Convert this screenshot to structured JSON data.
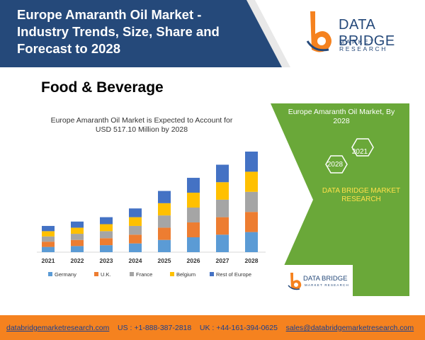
{
  "header": {
    "title": "Europe Amaranth Oil Market - Industry Trends, Size, Share and Forecast to 2028"
  },
  "logo": {
    "name": "DATA BRIDGE",
    "tagline": "MARKET RESEARCH"
  },
  "segment": "Food & Beverage",
  "chart_data": {
    "type": "bar",
    "stacked": true,
    "title": "Europe Amaranth Oil Market is Expected to Account for USD 517.10 Million by 2028",
    "categories": [
      "2021",
      "2022",
      "2023",
      "2024",
      "2025",
      "2026",
      "2027",
      "2028"
    ],
    "series": [
      {
        "name": "Germany",
        "color": "#5b9bd5",
        "values": [
          6,
          7,
          8,
          10,
          14,
          17,
          20,
          23
        ]
      },
      {
        "name": "U.K.",
        "color": "#ed7d31",
        "values": [
          6,
          7,
          8,
          10,
          14,
          17,
          20,
          23
        ]
      },
      {
        "name": "France",
        "color": "#a5a5a5",
        "values": [
          6,
          7,
          8,
          10,
          14,
          17,
          20,
          23
        ]
      },
      {
        "name": "Belgium",
        "color": "#ffc000",
        "values": [
          6,
          7,
          8,
          10,
          14,
          17,
          20,
          23
        ]
      },
      {
        "name": "Rest of Europe",
        "color": "#4472c4",
        "values": [
          6,
          7,
          8,
          10,
          14,
          17,
          20,
          23
        ]
      }
    ],
    "legend": "bottom",
    "grid": false
  },
  "panel": {
    "title": "Europe Amaranth Oil Market, By 2028",
    "hex_2021": "2021",
    "hex_2028": "2028",
    "brand": "DATA BRIDGE MARKET RESEARCH",
    "mini_logo_name": "DATA BRIDGE",
    "mini_logo_sub": "MARKET RESEARCH"
  },
  "footer": {
    "website": "databridgemarketresearch.com",
    "us_phone": "US : +1-888-387-2818",
    "uk_phone": "UK : +44-161-394-0625",
    "email": "sales@databridgemarketresearch.com"
  },
  "colors": {
    "header_bg": "#25497a",
    "footer_bg": "#f5821f",
    "panel_green": "#6aa839"
  }
}
